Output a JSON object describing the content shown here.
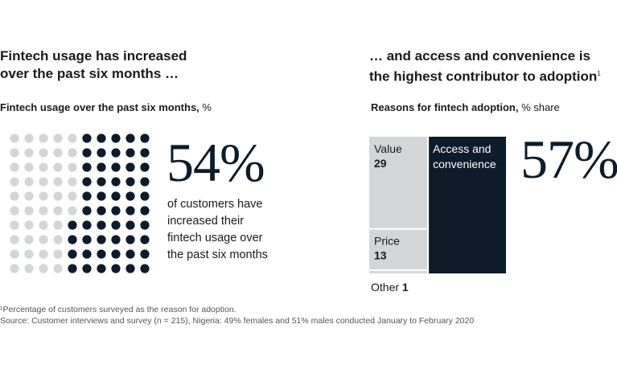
{
  "left": {
    "headline_line1": "Fintech usage has increased",
    "headline_line2": "over the past six months …",
    "subhead_bold": "Fintech usage over the past six months,",
    "subhead_unit": " %",
    "big_value": "54%",
    "description": "of customers have increased their fintech usage over the past six months"
  },
  "right": {
    "headline_line1": "… and access and convenience is",
    "headline_line2": "the highest contributor to adoption",
    "headline_sup": "1",
    "subhead_bold": "Reasons for fintech adoption,",
    "subhead_unit": " % share",
    "big_value": "57%"
  },
  "footnote": "¹Percentage of customers surveyed as the reason for adoption.",
  "source": "Source: Customer interviews and survey (n = 215), Nigeria: 49% females and 51% males conducted January to February 2020",
  "colors": {
    "dark": "#0d1b2a",
    "light": "#d3d5d8",
    "divider": "#ffffff"
  },
  "chart_data": [
    {
      "type": "waffle",
      "grid": [
        10,
        10
      ],
      "filled": 54,
      "total": 100,
      "unit": "%"
    },
    {
      "type": "mosaic",
      "unit": "% share",
      "segments": [
        {
          "label": "Value",
          "value": 29
        },
        {
          "label": "Price",
          "value": 13
        },
        {
          "label": "Other",
          "value": 1
        },
        {
          "label": "Access and convenience",
          "value": 57
        }
      ]
    }
  ]
}
